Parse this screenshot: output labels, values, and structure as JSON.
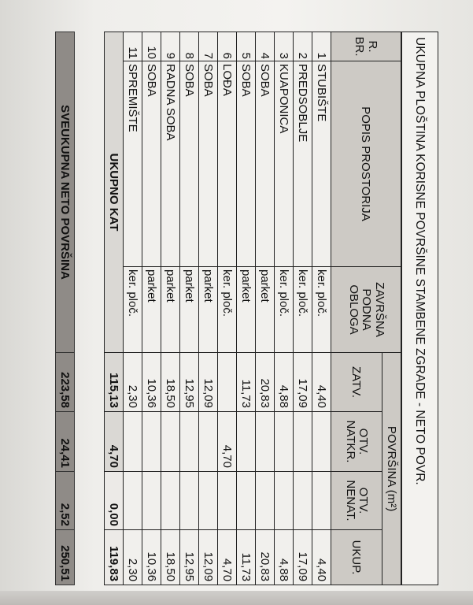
{
  "title": "UKUPNA PLOŠTINA KORISNE POVRŠINE STAMBENE ZGRADE - NETO POVR.",
  "header": {
    "no": "R. BR.",
    "name": "POPIS PROSTORIJA",
    "floor": "ZAVRŠNA PODNA OBLOGA",
    "area": "POVRŠINA (m²)",
    "zatv": "ZATV.",
    "otv_natkr": "OTV. NATKR.",
    "otv_nenat": "OTV. NENAT.",
    "ukup": "UKUP."
  },
  "rows": [
    {
      "no": "1",
      "name": "STUBIŠTE",
      "floor": "ker. ploč.",
      "zatv": "4,40",
      "otv_natkr": "",
      "otv_nenat": "",
      "ukup": "4,40"
    },
    {
      "no": "2",
      "name": "PREDSOBLJE",
      "floor": "ker. ploč.",
      "zatv": "17,09",
      "otv_natkr": "",
      "otv_nenat": "",
      "ukup": "17,09"
    },
    {
      "no": "3",
      "name": "KUAPONICA",
      "floor": "ker. ploč.",
      "zatv": "4,88",
      "otv_natkr": "",
      "otv_nenat": "",
      "ukup": "4,88"
    },
    {
      "no": "4",
      "name": "SOBA",
      "floor": "parket",
      "zatv": "20,83",
      "otv_natkr": "",
      "otv_nenat": "",
      "ukup": "20,83"
    },
    {
      "no": "5",
      "name": "SOBA",
      "floor": "parket",
      "zatv": "11,73",
      "otv_natkr": "",
      "otv_nenat": "",
      "ukup": "11,73"
    },
    {
      "no": "6",
      "name": "LOĐA",
      "floor": "ker. ploč.",
      "zatv": "",
      "otv_natkr": "4,70",
      "otv_nenat": "",
      "ukup": "4,70"
    },
    {
      "no": "7",
      "name": "SOBA",
      "floor": "parket",
      "zatv": "12,09",
      "otv_natkr": "",
      "otv_nenat": "",
      "ukup": "12,09"
    },
    {
      "no": "8",
      "name": "SOBA",
      "floor": "parket",
      "zatv": "12,95",
      "otv_natkr": "",
      "otv_nenat": "",
      "ukup": "12,95"
    },
    {
      "no": "9",
      "name": "RADNA SOBA",
      "floor": "parket",
      "zatv": "18,50",
      "otv_natkr": "",
      "otv_nenat": "",
      "ukup": "18,50"
    },
    {
      "no": "10",
      "name": "SOBA",
      "floor": "parket",
      "zatv": "10,36",
      "otv_natkr": "",
      "otv_nenat": "",
      "ukup": "10,36"
    },
    {
      "no": "11",
      "name": "SPREMIŠTE",
      "floor": "ker. ploč.",
      "zatv": "2,30",
      "otv_natkr": "",
      "otv_nenat": "",
      "ukup": "2,30"
    }
  ],
  "floor_total": {
    "label": "UKUPNO KAT",
    "zatv": "115,13",
    "otv_natkr": "4,70",
    "otv_nenat": "0,00",
    "ukup": "119,83"
  },
  "grand_total": {
    "label": "SVEUKUPNA NETO POVRŠINA",
    "zatv": "223,58",
    "otv_natkr": "24,41",
    "otv_nenat": "2,52",
    "ukup": "250,51"
  }
}
